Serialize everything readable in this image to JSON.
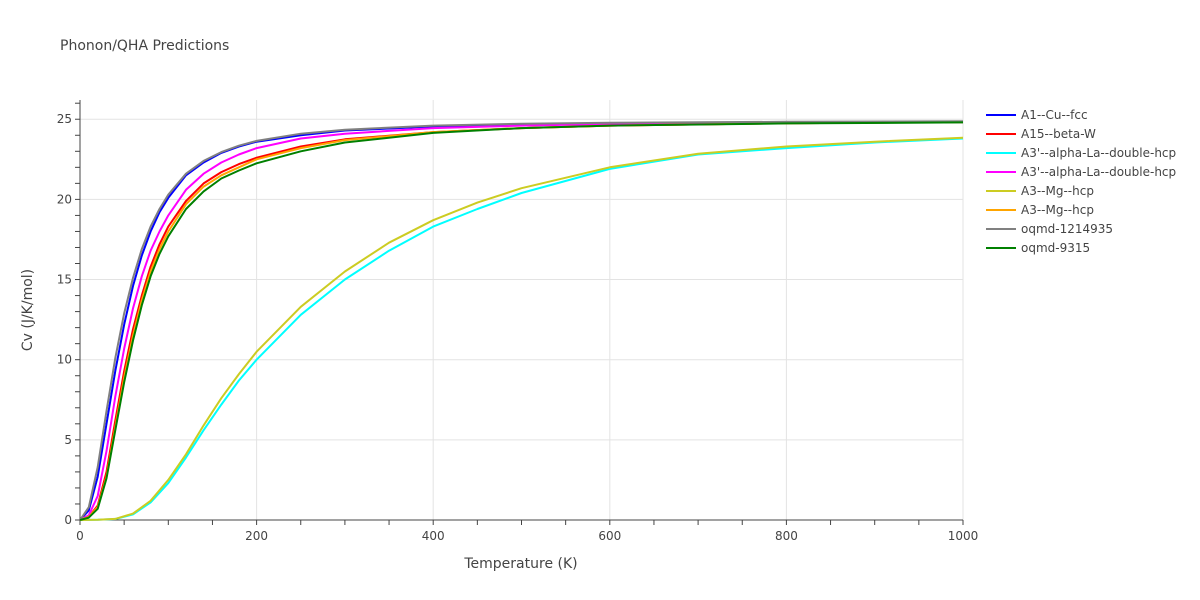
{
  "chart_data": {
    "type": "line",
    "title": "Phonon/QHA Predictions",
    "xlabel": "Temperature (K)",
    "ylabel": "Cv (J/K/mol)",
    "xlim": [
      0,
      1000
    ],
    "ylim": [
      0,
      26.2
    ],
    "xticks": [
      0,
      200,
      400,
      600,
      800,
      1000
    ],
    "yticks": [
      0,
      5,
      10,
      15,
      20,
      25
    ],
    "grid": true,
    "legend_position": "top-right, outside plot",
    "series": [
      {
        "name": "A1--Cu--fcc",
        "color": "#0000ff",
        "x": [
          0,
          10,
          20,
          30,
          40,
          50,
          60,
          70,
          80,
          90,
          100,
          120,
          140,
          160,
          180,
          200,
          250,
          300,
          400,
          500,
          600,
          800,
          1000
        ],
        "y": [
          0,
          0.6,
          2.7,
          6.0,
          9.3,
          12.2,
          14.6,
          16.5,
          18.0,
          19.2,
          20.1,
          21.5,
          22.3,
          22.9,
          23.3,
          23.6,
          24.0,
          24.3,
          24.55,
          24.68,
          24.75,
          24.8,
          24.83
        ]
      },
      {
        "name": "A15--beta-W",
        "color": "#ff0000",
        "x": [
          0,
          10,
          20,
          30,
          40,
          50,
          60,
          70,
          80,
          90,
          100,
          120,
          140,
          160,
          180,
          200,
          250,
          300,
          400,
          500,
          600,
          800,
          1000
        ],
        "y": [
          0,
          0.2,
          0.9,
          3.0,
          6.2,
          9.3,
          11.9,
          14.0,
          15.8,
          17.2,
          18.3,
          19.9,
          21.0,
          21.7,
          22.2,
          22.6,
          23.3,
          23.75,
          24.2,
          24.45,
          24.6,
          24.75,
          24.82
        ]
      },
      {
        "name": "A3'--alpha-La--double-hcp",
        "color": "#00ffff",
        "x": [
          0,
          20,
          40,
          60,
          80,
          100,
          120,
          140,
          160,
          180,
          200,
          250,
          300,
          350,
          400,
          450,
          500,
          600,
          700,
          800,
          900,
          1000
        ],
        "y": [
          0,
          0.01,
          0.06,
          0.35,
          1.1,
          2.3,
          3.9,
          5.6,
          7.2,
          8.7,
          10.0,
          12.8,
          15.0,
          16.8,
          18.3,
          19.4,
          20.4,
          21.9,
          22.8,
          23.2,
          23.55,
          23.8
        ]
      },
      {
        "name": "A3'--alpha-La--double-hcp",
        "color": "#ff00ff",
        "x": [
          0,
          10,
          20,
          30,
          40,
          50,
          60,
          70,
          80,
          90,
          100,
          120,
          140,
          160,
          180,
          200,
          250,
          300,
          400,
          500,
          600,
          800,
          1000
        ],
        "y": [
          0,
          0.3,
          1.5,
          4.3,
          7.7,
          10.7,
          13.2,
          15.2,
          16.8,
          18.0,
          19.0,
          20.6,
          21.6,
          22.3,
          22.8,
          23.2,
          23.8,
          24.1,
          24.45,
          24.6,
          24.7,
          24.78,
          24.82
        ]
      },
      {
        "name": "A3--Mg--hcp",
        "color": "#cccc22",
        "x": [
          0,
          20,
          40,
          60,
          80,
          100,
          120,
          140,
          160,
          180,
          200,
          250,
          300,
          350,
          400,
          450,
          500,
          600,
          700,
          800,
          900,
          1000
        ],
        "y": [
          0,
          0.01,
          0.07,
          0.4,
          1.2,
          2.5,
          4.1,
          5.9,
          7.6,
          9.1,
          10.5,
          13.3,
          15.5,
          17.3,
          18.7,
          19.8,
          20.7,
          22.0,
          22.85,
          23.3,
          23.6,
          23.85
        ]
      },
      {
        "name": "A3--Mg--hcp",
        "color": "#ffa500",
        "x": [
          0,
          10,
          20,
          30,
          40,
          50,
          60,
          70,
          80,
          90,
          100,
          120,
          140,
          160,
          180,
          200,
          250,
          300,
          400,
          500,
          600,
          800,
          1000
        ],
        "y": [
          0,
          0.2,
          0.8,
          2.7,
          5.8,
          8.9,
          11.5,
          13.7,
          15.5,
          16.9,
          18.0,
          19.7,
          20.8,
          21.5,
          22.0,
          22.5,
          23.2,
          23.7,
          24.2,
          24.45,
          24.6,
          24.75,
          24.82
        ]
      },
      {
        "name": "oqmd-1214935",
        "color": "#808080",
        "x": [
          0,
          10,
          20,
          30,
          40,
          50,
          60,
          70,
          80,
          90,
          100,
          120,
          140,
          160,
          180,
          200,
          250,
          300,
          400,
          500,
          600,
          800,
          1000
        ],
        "y": [
          0,
          0.8,
          3.3,
          6.8,
          10.1,
          12.9,
          15.1,
          16.9,
          18.3,
          19.4,
          20.3,
          21.6,
          22.4,
          22.95,
          23.35,
          23.65,
          24.1,
          24.35,
          24.6,
          24.72,
          24.78,
          24.84,
          24.87
        ]
      },
      {
        "name": "oqmd-9315",
        "color": "#008000",
        "x": [
          0,
          10,
          20,
          30,
          40,
          50,
          60,
          70,
          80,
          90,
          100,
          120,
          140,
          160,
          180,
          200,
          250,
          300,
          400,
          500,
          600,
          800,
          1000
        ],
        "y": [
          0,
          0.15,
          0.7,
          2.6,
          5.6,
          8.6,
          11.2,
          13.4,
          15.2,
          16.6,
          17.7,
          19.4,
          20.5,
          21.3,
          21.8,
          22.25,
          23.0,
          23.55,
          24.15,
          24.45,
          24.6,
          24.74,
          24.8
        ]
      }
    ]
  }
}
